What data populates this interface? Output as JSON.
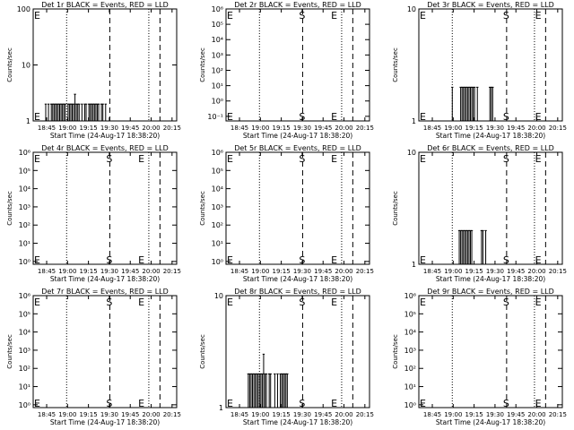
{
  "figure": {
    "x_tick_labels": [
      "18:45",
      "19:00",
      "19:15",
      "19:30",
      "19:45",
      "20:00",
      "20:15"
    ],
    "x_axis_label": "Start Time (24-Aug-17 18:38:20)",
    "y_axis_label": "Counts/sec",
    "marker_start": "S",
    "marker_end": "E"
  },
  "chart_data": [
    {
      "type": "bar",
      "title": "Det 1r BLACK = Events, RED = LLD",
      "scale": "log",
      "yticks": [
        "1",
        "10",
        "100"
      ],
      "ylim": [
        1,
        100
      ],
      "left_marker": "E",
      "markers_right": [],
      "xlim_min": [
        -3,
        95
      ],
      "lines": {
        "dotted": [
          21,
          80
        ],
        "dashed": [
          52,
          88
        ]
      },
      "bars": [
        [
          6,
          2
        ],
        [
          8,
          2
        ],
        [
          10,
          2
        ],
        [
          11,
          2
        ],
        [
          12,
          2
        ],
        [
          13,
          2
        ],
        [
          14,
          2
        ],
        [
          15,
          2
        ],
        [
          16,
          2
        ],
        [
          17,
          2
        ],
        [
          18,
          2
        ],
        [
          19,
          2
        ],
        [
          20,
          2
        ],
        [
          22,
          2
        ],
        [
          23,
          2
        ],
        [
          24,
          2
        ],
        [
          25,
          2
        ],
        [
          26,
          2
        ],
        [
          27,
          3
        ],
        [
          28,
          2
        ],
        [
          29,
          2
        ],
        [
          30,
          2
        ],
        [
          32,
          2
        ],
        [
          34,
          2
        ],
        [
          35,
          2
        ],
        [
          37,
          2
        ],
        [
          38,
          2
        ],
        [
          39,
          2
        ],
        [
          40,
          2
        ],
        [
          41,
          2
        ],
        [
          42,
          2
        ],
        [
          43,
          2
        ],
        [
          44,
          2
        ],
        [
          46,
          2
        ],
        [
          47,
          2
        ],
        [
          49,
          2
        ]
      ]
    },
    {
      "type": "bar",
      "title": "Det 2r BLACK = Events, RED = LLD",
      "scale": "log",
      "yticks": [
        "10⁻¹",
        "10⁰",
        "10¹",
        "10²",
        "10³",
        "10⁴",
        "10⁵",
        "10⁶"
      ],
      "ylim": [
        0.05,
        1000000
      ],
      "left_marker": "E",
      "markers_right": [
        [
          "S",
          52
        ],
        [
          "E",
          75
        ]
      ],
      "xlim_min": [
        -3,
        95
      ],
      "lines": {
        "dotted": [
          21,
          80
        ],
        "dashed": [
          52,
          88
        ]
      },
      "bars": []
    },
    {
      "type": "bar",
      "title": "Det 3r BLACK = Events, RED = LLD",
      "scale": "log",
      "yticks": [
        "1",
        "10"
      ],
      "ylim": [
        1,
        10
      ],
      "left_marker": "E",
      "markers_right": [
        [
          "S",
          60
        ],
        [
          "E",
          83
        ]
      ],
      "xlim_min": [
        -3,
        95
      ],
      "lines": {
        "dotted": [
          21,
          80
        ],
        "dashed": [
          60,
          88
        ]
      },
      "bars": [
        [
          21,
          2
        ],
        [
          27,
          2
        ],
        [
          28,
          2
        ],
        [
          29,
          2
        ],
        [
          30,
          2
        ],
        [
          31,
          2
        ],
        [
          32,
          2
        ],
        [
          33,
          2
        ],
        [
          34,
          2
        ],
        [
          35,
          2
        ],
        [
          36,
          2
        ],
        [
          37,
          2
        ],
        [
          39,
          2
        ],
        [
          48,
          2
        ],
        [
          49,
          2
        ],
        [
          50,
          2
        ]
      ]
    },
    {
      "type": "bar",
      "title": "Det 4r BLACK = Events, RED = LLD",
      "scale": "log",
      "yticks": [
        "10⁰",
        "10¹",
        "10²",
        "10³",
        "10⁴",
        "10⁵",
        "10⁶"
      ],
      "ylim": [
        0.7,
        1000000
      ],
      "left_marker": "E",
      "markers_right": [
        [
          "S",
          52
        ],
        [
          "E",
          75
        ]
      ],
      "xlim_min": [
        -3,
        95
      ],
      "lines": {
        "dotted": [
          21,
          80
        ],
        "dashed": [
          52,
          88
        ]
      },
      "bars": []
    },
    {
      "type": "bar",
      "title": "Det 5r BLACK = Events, RED = LLD",
      "scale": "log",
      "yticks": [
        "10⁰",
        "10¹",
        "10²",
        "10³",
        "10⁴",
        "10⁵",
        "10⁶"
      ],
      "ylim": [
        0.7,
        1000000
      ],
      "left_marker": "E",
      "markers_right": [
        [
          "S",
          52
        ],
        [
          "E",
          75
        ]
      ],
      "xlim_min": [
        -3,
        95
      ],
      "lines": {
        "dotted": [
          21,
          80
        ],
        "dashed": [
          52,
          88
        ]
      },
      "bars": []
    },
    {
      "type": "bar",
      "title": "Det 6r BLACK = Events, RED = LLD",
      "scale": "log",
      "yticks": [
        "1",
        "10"
      ],
      "ylim": [
        1,
        10
      ],
      "left_marker": "E",
      "markers_right": [
        [
          "S",
          60
        ],
        [
          "E",
          83
        ]
      ],
      "xlim_min": [
        -3,
        95
      ],
      "lines": {
        "dotted": [
          21,
          80
        ],
        "dashed": [
          60,
          88
        ]
      },
      "bars": [
        [
          26,
          2
        ],
        [
          27,
          2
        ],
        [
          28,
          2
        ],
        [
          29,
          2
        ],
        [
          30,
          2
        ],
        [
          31,
          2
        ],
        [
          32,
          2
        ],
        [
          33,
          2
        ],
        [
          34,
          2
        ],
        [
          35,
          2
        ],
        [
          42,
          2
        ],
        [
          43,
          2
        ],
        [
          45,
          2
        ]
      ]
    },
    {
      "type": "bar",
      "title": "Det 7r BLACK = Events, RED = LLD",
      "scale": "log",
      "yticks": [
        "10⁰",
        "10¹",
        "10²",
        "10³",
        "10⁴",
        "10⁵",
        "10⁶"
      ],
      "ylim": [
        0.7,
        1000000
      ],
      "left_marker": "E",
      "markers_right": [
        [
          "S",
          52
        ],
        [
          "E",
          75
        ]
      ],
      "xlim_min": [
        -3,
        95
      ],
      "lines": {
        "dotted": [
          21,
          80
        ],
        "dashed": [
          52,
          88
        ]
      },
      "bars": []
    },
    {
      "type": "bar",
      "title": "Det 8r BLACK = Events, RED = LLD",
      "scale": "log",
      "yticks": [
        "1",
        "10"
      ],
      "ylim": [
        1,
        10
      ],
      "left_marker": "E",
      "markers_right": [
        [
          "S",
          52
        ],
        [
          "E",
          75
        ]
      ],
      "xlim_min": [
        -3,
        95
      ],
      "lines": {
        "dotted": [
          21,
          80
        ],
        "dashed": [
          52,
          88
        ]
      },
      "bars": [
        [
          13,
          2
        ],
        [
          14,
          2
        ],
        [
          15,
          2
        ],
        [
          16,
          2
        ],
        [
          17,
          2
        ],
        [
          18,
          2
        ],
        [
          19,
          2
        ],
        [
          20,
          2
        ],
        [
          21,
          2
        ],
        [
          22,
          2
        ],
        [
          23,
          2
        ],
        [
          24,
          3
        ],
        [
          25,
          2
        ],
        [
          26,
          2
        ],
        [
          28,
          2
        ],
        [
          29,
          2
        ],
        [
          32,
          2
        ],
        [
          34,
          2
        ],
        [
          36,
          2
        ],
        [
          37,
          2
        ],
        [
          38,
          2
        ],
        [
          39,
          2
        ],
        [
          40,
          2
        ],
        [
          41,
          2
        ]
      ]
    },
    {
      "type": "bar",
      "title": "Det 9r BLACK = Events, RED = LLD",
      "scale": "log",
      "yticks": [
        "10⁰",
        "10¹",
        "10²",
        "10³",
        "10⁴",
        "10⁵",
        "10⁶"
      ],
      "ylim": [
        0.7,
        1000000
      ],
      "left_marker": "E",
      "markers_right": [
        [
          "S",
          60
        ],
        [
          "E",
          83
        ]
      ],
      "xlim_min": [
        -3,
        95
      ],
      "lines": {
        "dotted": [
          21,
          80
        ],
        "dashed": [
          60,
          88
        ]
      },
      "bars": []
    }
  ]
}
